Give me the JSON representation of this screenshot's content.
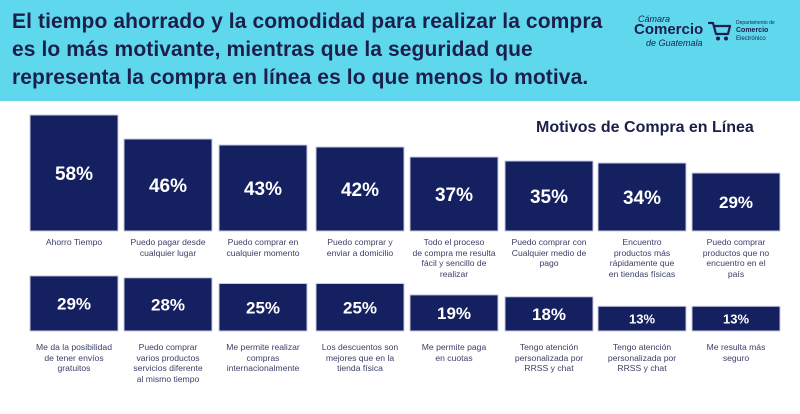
{
  "header": {
    "headline_lines": [
      "El tiempo ahorrado y la comodidad para realizar la compra",
      "es lo más motivante, mientras que la seguridad que",
      "representa la compra en línea es lo que menos lo motiva."
    ],
    "logo_ccg": {
      "line1": "Cámara",
      "line2": "Comercio",
      "line3": "de Guatemala"
    },
    "logo_dce": {
      "line1": "Departamento de",
      "line2": "Comercio",
      "line3": "Electrónico"
    }
  },
  "colors": {
    "header_bg": "#5fd8ee",
    "bar": "#14205f",
    "bar_border": "#c9cbe0",
    "text": "#1b1f4a"
  },
  "chart_data": {
    "type": "bar",
    "title": "Motivos de Compra en Línea",
    "unit": "%",
    "rows": [
      {
        "categories": [
          [
            "Ahorro Tiempo"
          ],
          [
            "Puedo pagar desde",
            "cualquier lugar"
          ],
          [
            "Puedo comprar en",
            "cualquier momento"
          ],
          [
            "Puedo comprar y",
            "enviar a domicilio"
          ],
          [
            "Todo el proceso",
            "de compra me resulta",
            "fácil y sencillo de",
            "realizar"
          ],
          [
            "Puedo comprar con",
            "Cualquier medio de",
            "pago"
          ],
          [
            "Encuentro",
            "productos más",
            "rápidamente que",
            "en tiendas físicas"
          ],
          [
            "Puedo comprar",
            "productos que no",
            "encuentro en el",
            "país"
          ]
        ],
        "values": [
          58,
          46,
          43,
          42,
          37,
          35,
          34,
          29
        ],
        "data_labels": [
          "58%",
          "46%",
          "43%",
          "42%",
          "37%",
          "35%",
          "34%",
          "29%"
        ]
      },
      {
        "categories": [
          [
            "Me da la posibilidad",
            "de tener envíos",
            "gratuitos"
          ],
          [
            "Puedo comprar",
            "varios productos",
            "servicios diferente",
            "al mismo tiempo"
          ],
          [
            "Me permite realizar",
            "compras",
            "internacionalmente"
          ],
          [
            "Los descuentos son",
            "mejores que en la",
            "tienda física"
          ],
          [
            "Me permite paga",
            "en cuotas"
          ],
          [
            "Tengo atención",
            "personalizada por",
            "RRSS y chat"
          ],
          [
            "Tengo atención",
            "personalizada por",
            "RRSS y chat"
          ],
          [
            "Me resulta más",
            "seguro"
          ]
        ],
        "values": [
          29,
          28,
          25,
          25,
          19,
          18,
          13,
          13
        ],
        "data_labels": [
          "29%",
          "28%",
          "25%",
          "25%",
          "19%",
          "18%",
          "13%",
          "13%"
        ]
      }
    ]
  }
}
